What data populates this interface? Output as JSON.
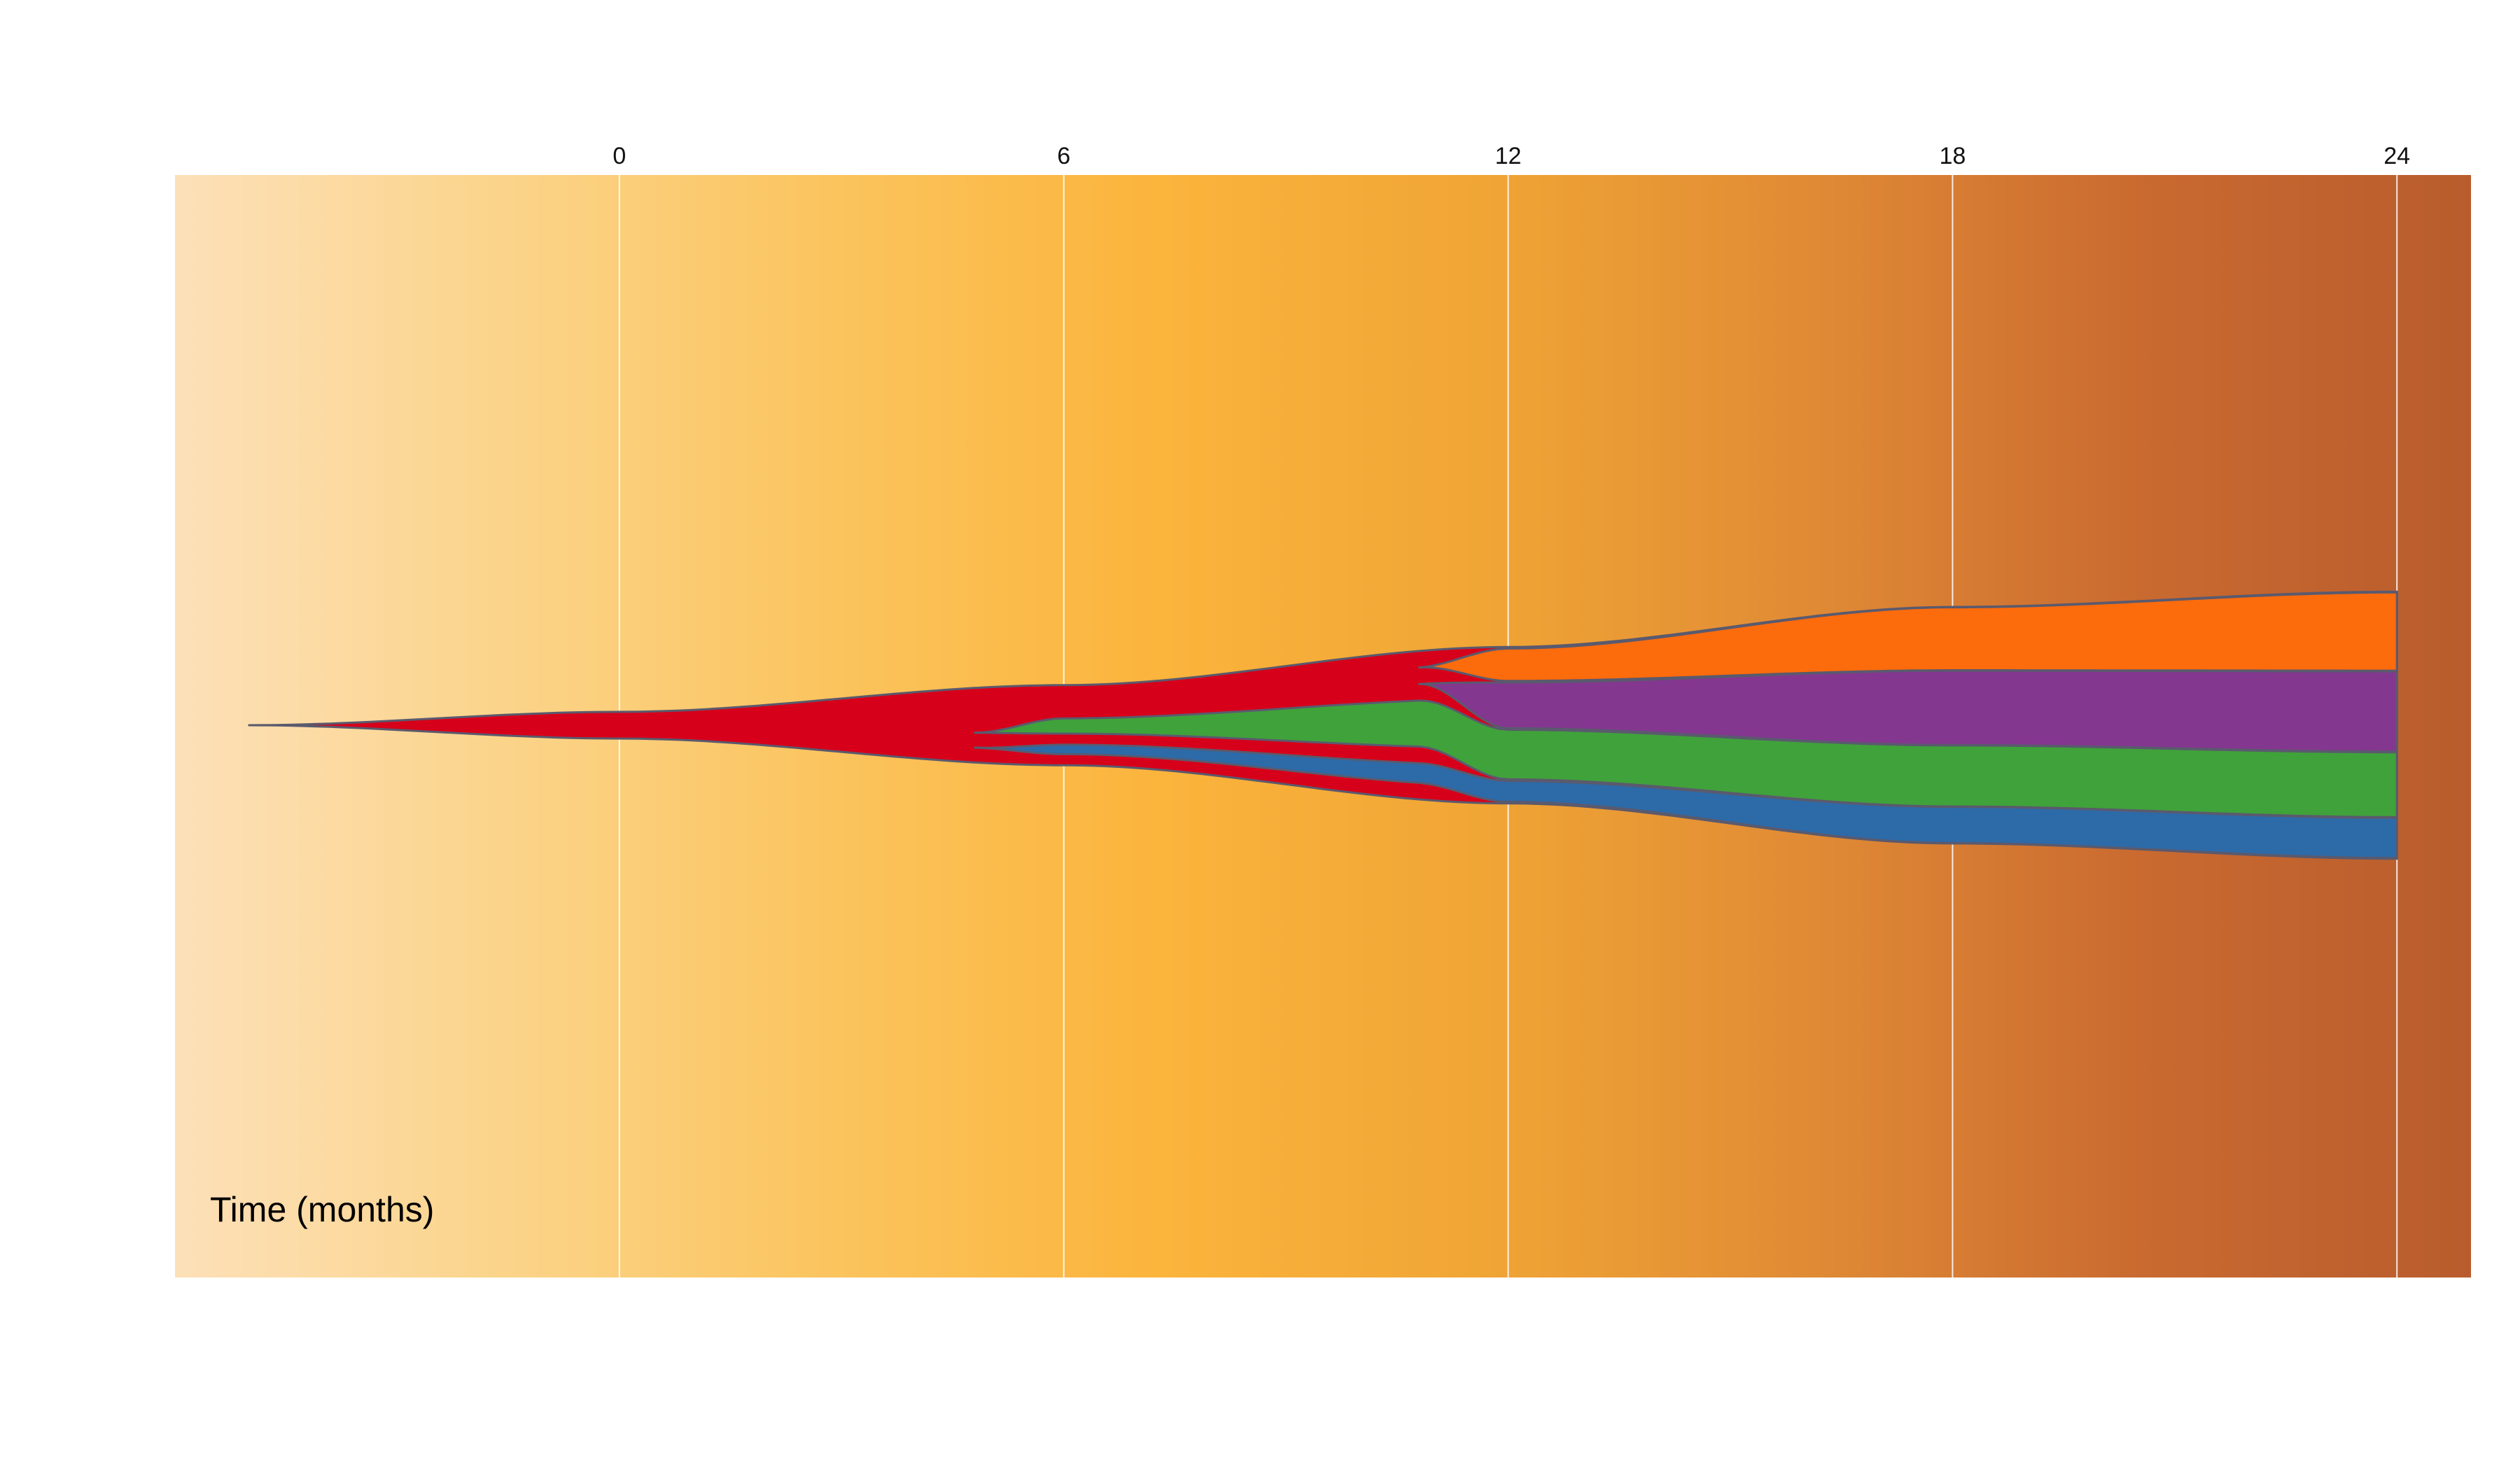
{
  "chart_data": {
    "type": "area",
    "xlabel": "Time (months)",
    "ylabel": "",
    "title": "",
    "x_ticks": [
      0,
      6,
      12,
      18,
      24
    ],
    "xlim": [
      -6,
      25
    ],
    "grid": true,
    "background_gradient": [
      "#fce0b8",
      "#fbd48a",
      "#fbc45e",
      "#fbb43c",
      "#f0a535",
      "#e08a35",
      "#c96a30",
      "#b95c2d"
    ],
    "series": [
      {
        "name": "",
        "color": "#d7001a",
        "parent": null,
        "origin": -5.0,
        "values": [
          [
            -5.0,
            0
          ],
          [
            0,
            7.0
          ],
          [
            6,
            21.0
          ],
          [
            12,
            41.0
          ],
          [
            18,
            62.0
          ],
          [
            24,
            70.0
          ]
        ]
      },
      {
        "name": "",
        "color": "#fc6b0c",
        "parent": 0,
        "origin": 10.8,
        "values": [
          [
            12,
            8.5
          ],
          [
            18,
            16.5
          ],
          [
            24,
            20.5
          ]
        ]
      },
      {
        "name": "",
        "color": "#84378f",
        "parent": 0,
        "origin": 10.8,
        "values": [
          [
            12,
            12.0
          ],
          [
            18,
            19.5
          ],
          [
            24,
            21.0
          ]
        ]
      },
      {
        "name": "",
        "color": "#40a23a",
        "parent": 0,
        "origin": 4.8,
        "values": [
          [
            6,
            4.0
          ],
          [
            12,
            13.0
          ],
          [
            18,
            16.0
          ],
          [
            24,
            17.0
          ]
        ]
      },
      {
        "name": "",
        "color": "#2d6aa8",
        "parent": 0,
        "origin": 4.8,
        "values": [
          [
            6,
            2.5
          ],
          [
            12,
            5.5
          ],
          [
            18,
            9.5
          ],
          [
            24,
            10.5
          ]
        ]
      }
    ]
  }
}
